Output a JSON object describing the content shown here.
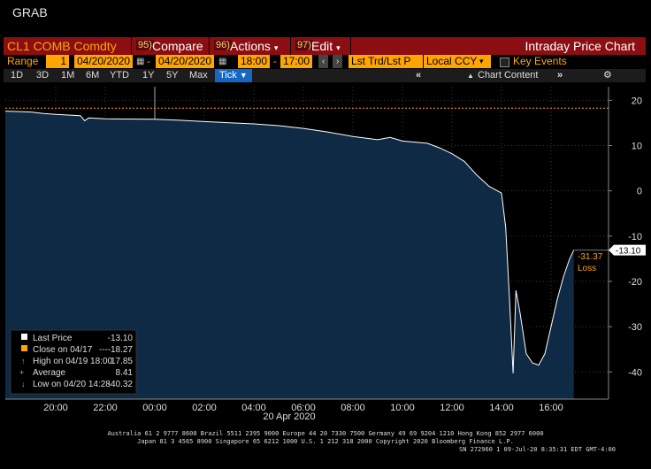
{
  "window": {
    "title": "GRAB"
  },
  "toolbar1": {
    "ticker": "CL1 COMB Comdty",
    "compare_num": "95)",
    "compare_label": "Compare",
    "actions_num": "96)",
    "actions_label": "Actions",
    "edit_num": "97)",
    "edit_label": "Edit",
    "title": "Intraday Price Chart"
  },
  "toolbar2": {
    "range_label": "Range",
    "range_value": "1",
    "start_date": "04/20/2020",
    "dash": "-",
    "end_date": "04/20/2020",
    "start_time": "18:00",
    "end_time": "17:00",
    "field1": "Lst Trd/Lst P",
    "field2": "Local CCY",
    "key_events": "Key Events"
  },
  "toolbar3": {
    "periods": [
      "1D",
      "3D",
      "1M",
      "6M",
      "YTD",
      "1Y",
      "5Y",
      "Max"
    ],
    "selected": "Tick",
    "chart_content": "Chart Content"
  },
  "colors": {
    "accent": "#ffa500",
    "menu_bar": "#8b0e12",
    "area_fill": "#0f2a45",
    "line": "#ffffff",
    "selected_tab": "#1667c4"
  },
  "chart_data": {
    "type": "area",
    "x_axis_labels": [
      "20:00",
      "22:00",
      "00:00",
      "02:00",
      "04:00",
      "06:00",
      "08:00",
      "10:00",
      "12:00",
      "14:00",
      "16:00"
    ],
    "x_axis_date": "20 Apr 2020",
    "y_ticks": [
      20,
      10,
      0,
      -10,
      -20,
      -30,
      -40
    ],
    "ylim": [
      -46,
      23
    ],
    "close_line": 18.27,
    "last_price_tag": "-13.10",
    "annotation_value": "-31.37",
    "annotation_label": "Loss",
    "points": [
      [
        "18:00",
        17.6
      ],
      [
        "18:30",
        17.5
      ],
      [
        "19:00",
        17.4
      ],
      [
        "19:30",
        17.1
      ],
      [
        "20:00",
        16.9
      ],
      [
        "21:00",
        16.6
      ],
      [
        "21:10",
        15.5
      ],
      [
        "21:20",
        16.1
      ],
      [
        "22:00",
        15.9
      ],
      [
        "00:00",
        15.8
      ],
      [
        "01:00",
        15.6
      ],
      [
        "02:00",
        15.3
      ],
      [
        "04:00",
        14.8
      ],
      [
        "05:00",
        14.4
      ],
      [
        "06:00",
        13.8
      ],
      [
        "07:00",
        13.0
      ],
      [
        "08:00",
        12.0
      ],
      [
        "09:00",
        11.3
      ],
      [
        "09:30",
        11.8
      ],
      [
        "10:00",
        11.0
      ],
      [
        "11:00",
        10.5
      ],
      [
        "11:30",
        9.5
      ],
      [
        "12:00",
        8.2
      ],
      [
        "12:30",
        6.5
      ],
      [
        "13:00",
        3.5
      ],
      [
        "13:30",
        1.0
      ],
      [
        "14:00",
        -0.5
      ],
      [
        "14:10",
        -8.0
      ],
      [
        "14:20",
        -25.0
      ],
      [
        "14:28",
        -40.32
      ],
      [
        "14:35",
        -22.0
      ],
      [
        "14:45",
        -27.0
      ],
      [
        "15:00",
        -36.0
      ],
      [
        "15:15",
        -38.0
      ],
      [
        "15:30",
        -38.5
      ],
      [
        "15:45",
        -36.0
      ],
      [
        "16:00",
        -30.0
      ],
      [
        "16:15",
        -24.0
      ],
      [
        "16:30",
        -19.0
      ],
      [
        "16:45",
        -15.0
      ],
      [
        "16:55",
        -13.1
      ]
    ]
  },
  "legend": {
    "items": [
      {
        "label": "Last Price",
        "value": "-13.10"
      },
      {
        "label": "Close on 04/17",
        "value": "18.27",
        "dash": "----"
      },
      {
        "label": "High on 04/19 18:00",
        "value": "17.85"
      },
      {
        "label": "Average",
        "value": "8.41"
      },
      {
        "label": "Low on 04/20 14:28",
        "value": "-40.32"
      }
    ]
  },
  "footer": {
    "line1": "Australia 61 2 9777 8600 Brazil 5511 2395 9000 Europe 44 20 7330 7500 Germany 49 69 9204 1210 Hong Kong 852 2977 6000",
    "line2": "Japan 81 3 4565 8900        Singapore 65 6212 1000        U.S. 1 212 318 2000           Copyright 2020 Bloomberg Finance L.P.",
    "line3": "SN 272960 1 09-Jul-20  8:35:31 EDT  GMT-4:00"
  }
}
